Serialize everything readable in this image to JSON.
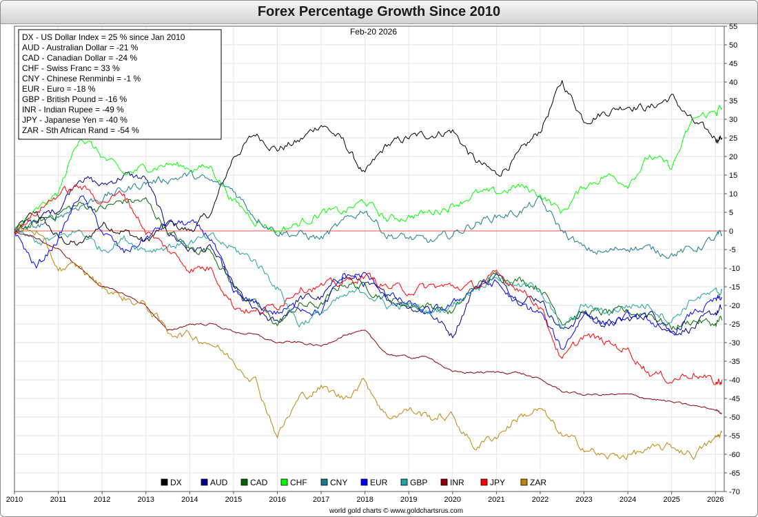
{
  "chart_data": {
    "type": "line",
    "title": "Forex Percentage Growth Since 2010",
    "date_label": "Feb-20  2026",
    "footer": "world gold charts © www.goldchartsrus.com",
    "xlabel": "",
    "ylabel": "",
    "x_ticks": [
      "2010",
      "2011",
      "2012",
      "2013",
      "2014",
      "2015",
      "2016",
      "2017",
      "2018",
      "2019",
      "2020",
      "2021",
      "2022",
      "2023",
      "2024",
      "2025",
      "2026"
    ],
    "xlim": [
      2010,
      2026.2
    ],
    "ylim": [
      -70,
      55
    ],
    "y_ticks": [
      55,
      50,
      45,
      40,
      35,
      30,
      25,
      20,
      15,
      10,
      5,
      0,
      -5,
      -10,
      -15,
      -20,
      -25,
      -30,
      -35,
      -40,
      -45,
      -50,
      -55,
      -60,
      -65,
      -70
    ],
    "reference_line": 0,
    "legend_position": "bottom",
    "annotation_position": "top-left",
    "annotations": [
      "DX - US Dollar Index = 25 % since Jan 2010",
      "AUD - Australian Dollar = -21 %",
      "CAD - Canadian Dollar = -24 %",
      "CHF - Swiss Franc = 33 %",
      "CNY - Chinese Renminbi = -1 %",
      "EUR - Euro = -18 %",
      "GBP - British Pound = -16 %",
      "INR - Indian Rupee = -49 %",
      "JPY - Japanese Yen = -40 %",
      "ZAR - Sth African Rand = -54 %"
    ],
    "x": [
      2010.0,
      2010.5,
      2011.0,
      2011.5,
      2012.0,
      2012.5,
      2013.0,
      2013.5,
      2014.0,
      2014.5,
      2015.0,
      2015.5,
      2016.0,
      2016.5,
      2017.0,
      2017.5,
      2018.0,
      2018.5,
      2019.0,
      2019.5,
      2020.0,
      2020.5,
      2021.0,
      2021.5,
      2022.0,
      2022.5,
      2023.0,
      2023.5,
      2024.0,
      2024.5,
      2025.0,
      2025.5,
      2026.0,
      2026.15
    ],
    "series": [
      {
        "name": "DX",
        "color": "#000000",
        "values": [
          0,
          5,
          -2,
          -4,
          2,
          0,
          -3,
          2,
          0,
          5,
          20,
          26,
          22,
          24,
          29,
          24,
          15,
          23,
          25,
          26,
          27,
          19,
          15,
          20,
          27,
          40,
          30,
          32,
          34,
          33,
          36,
          29,
          25,
          25
        ]
      },
      {
        "name": "AUD",
        "color": "#00008b",
        "values": [
          0,
          3,
          6,
          15,
          12,
          15,
          14,
          0,
          -5,
          -5,
          -15,
          -22,
          -25,
          -18,
          -18,
          -12,
          -14,
          -18,
          -20,
          -22,
          -28,
          -15,
          -12,
          -18,
          -18,
          -27,
          -22,
          -25,
          -24,
          -22,
          -27,
          -26,
          -22,
          -21
        ]
      },
      {
        "name": "CAD",
        "color": "#006400",
        "values": [
          0,
          2,
          5,
          7,
          6,
          8,
          8,
          0,
          -5,
          -5,
          -15,
          -20,
          -25,
          -20,
          -20,
          -14,
          -15,
          -18,
          -20,
          -20,
          -22,
          -15,
          -12,
          -13,
          -15,
          -24,
          -22,
          -22,
          -22,
          -22,
          -26,
          -24,
          -25,
          -24
        ]
      },
      {
        "name": "CHF",
        "color": "#00ff00",
        "values": [
          0,
          5,
          10,
          26,
          20,
          15,
          17,
          18,
          17,
          17,
          8,
          3,
          0,
          2,
          5,
          5,
          8,
          3,
          4,
          5,
          7,
          10,
          10,
          12,
          10,
          5,
          12,
          15,
          13,
          20,
          17,
          30,
          32,
          33
        ]
      },
      {
        "name": "CNY",
        "color": "#1a7a8c",
        "values": [
          0,
          1,
          4,
          7,
          9,
          11,
          13,
          14,
          15,
          13,
          11,
          4,
          0,
          -1,
          -2,
          2,
          6,
          -1,
          -2,
          -3,
          -1,
          2,
          4,
          5,
          8,
          0,
          -5,
          -6,
          -4,
          -5,
          -6,
          -5,
          -2,
          -1
        ]
      },
      {
        "name": "EUR",
        "color": "#0000ff",
        "values": [
          0,
          -10,
          -2,
          10,
          0,
          -6,
          -2,
          2,
          2,
          -2,
          -17,
          -20,
          -22,
          -20,
          -22,
          -12,
          -12,
          -17,
          -20,
          -22,
          -20,
          -15,
          -14,
          -20,
          -22,
          -32,
          -22,
          -25,
          -23,
          -24,
          -28,
          -22,
          -19,
          -18
        ]
      },
      {
        "name": "GBP",
        "color": "#20a0a0",
        "values": [
          0,
          -3,
          -2,
          0,
          -5,
          -2,
          -5,
          -4,
          -3,
          -2,
          -5,
          -8,
          -15,
          -25,
          -22,
          -18,
          -16,
          -20,
          -20,
          -22,
          -20,
          -15,
          -12,
          -15,
          -15,
          -27,
          -20,
          -22,
          -20,
          -20,
          -24,
          -18,
          -17,
          -16
        ]
      },
      {
        "name": "INR",
        "color": "#8b0000",
        "values": [
          0,
          -2,
          -5,
          -10,
          -15,
          -17,
          -20,
          -27,
          -25,
          -25,
          -27,
          -28,
          -30,
          -30,
          -31,
          -28,
          -27,
          -33,
          -34,
          -34,
          -38,
          -38,
          -38,
          -38,
          -40,
          -43,
          -44,
          -44,
          -44,
          -45,
          -46,
          -47,
          -48,
          -49
        ]
      },
      {
        "name": "JPY",
        "color": "#ff0000",
        "values": [
          0,
          5,
          10,
          12,
          8,
          10,
          0,
          -5,
          -10,
          -10,
          -20,
          -22,
          -20,
          -15,
          -15,
          -14,
          -12,
          -15,
          -16,
          -15,
          -15,
          -15,
          -12,
          -15,
          -20,
          -35,
          -28,
          -30,
          -32,
          -38,
          -40,
          -38,
          -41,
          -40
        ]
      },
      {
        "name": "ZAR",
        "color": "#b8860b",
        "values": [
          0,
          0,
          -10,
          -10,
          -15,
          -18,
          -20,
          -27,
          -28,
          -30,
          -35,
          -40,
          -55,
          -45,
          -42,
          -45,
          -40,
          -50,
          -48,
          -50,
          -50,
          -58,
          -55,
          -50,
          -48,
          -55,
          -58,
          -61,
          -60,
          -59,
          -58,
          -60,
          -56,
          -54
        ]
      }
    ]
  }
}
